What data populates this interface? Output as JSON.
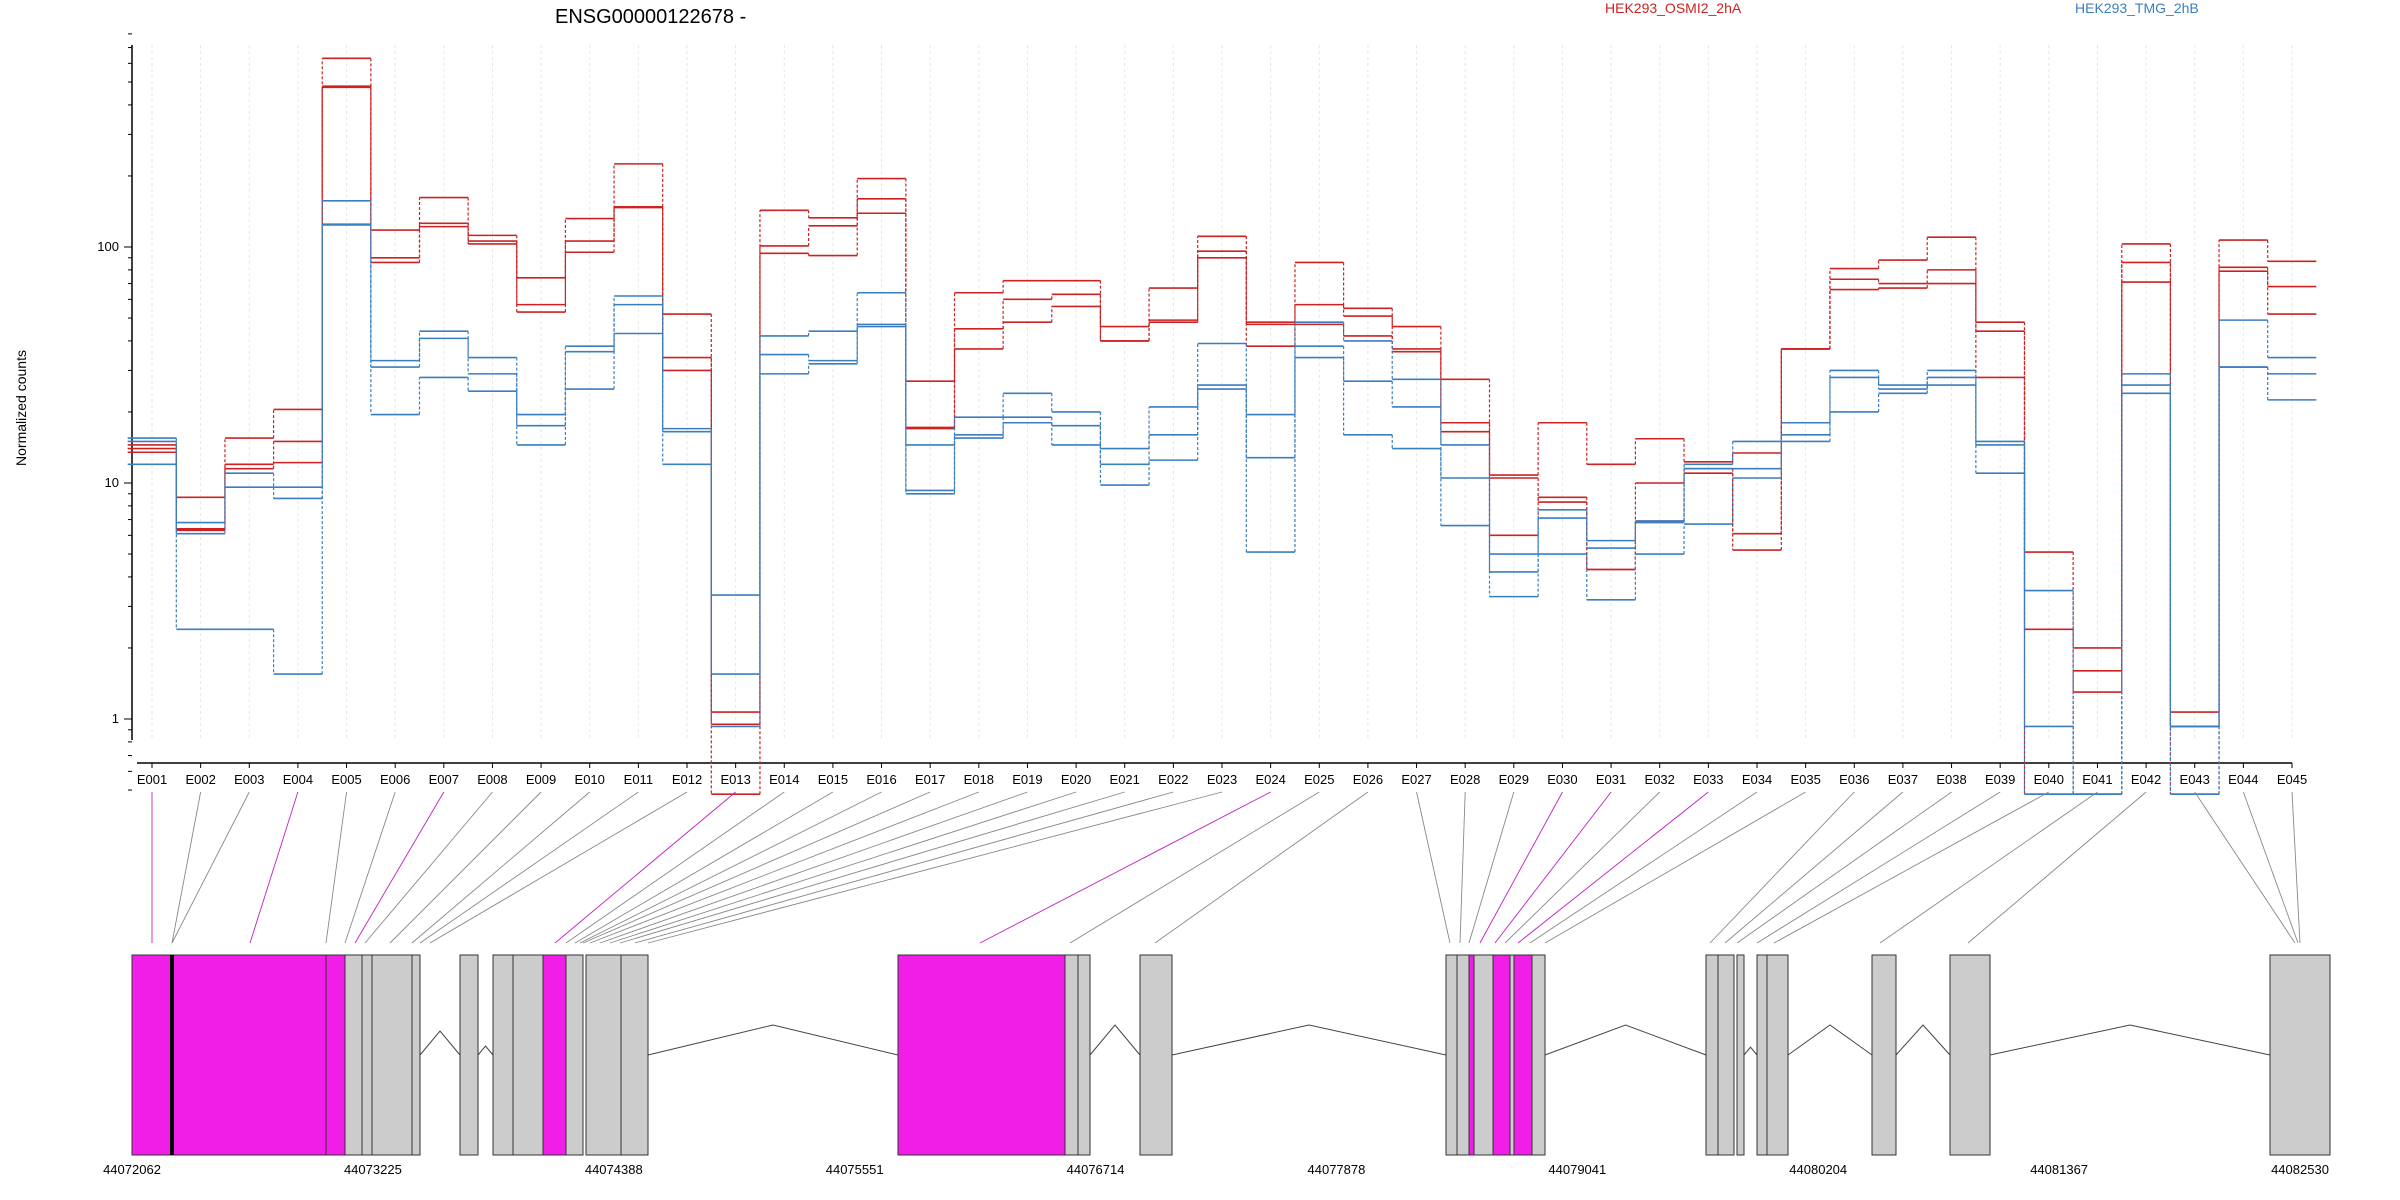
{
  "chart_data": {
    "type": "line",
    "title": "ENSG00000122678 -",
    "xlabel": "",
    "ylabel": "Normalized counts",
    "yscale": "log",
    "ylim": [
      0.45,
      800
    ],
    "yticks": [
      {
        "value": 1,
        "label": "1"
      },
      {
        "value": 10,
        "label": "10"
      },
      {
        "value": 100,
        "label": "100"
      }
    ],
    "grid": true,
    "legend_position": "top",
    "colors": {
      "condition_a": "#cc2222",
      "condition_b": "#3a7ebf",
      "exon_highlight": "#f01ee6",
      "exon_grey": "#cccccc",
      "connector_grey": "#888888",
      "connector_magenta": "#c020c0"
    },
    "exons": [
      "E001",
      "E002",
      "E003",
      "E004",
      "E005",
      "E006",
      "E007",
      "E008",
      "E009",
      "E010",
      "E011",
      "E012",
      "E013",
      "E014",
      "E015",
      "E016",
      "E017",
      "E018",
      "E019",
      "E020",
      "E021",
      "E022",
      "E023",
      "E024",
      "E025",
      "E026",
      "E027",
      "E028",
      "E029",
      "E030",
      "E031",
      "E032",
      "E033",
      "E034",
      "E035",
      "E036",
      "E037",
      "E038",
      "E039",
      "E040",
      "E041",
      "E042",
      "E043",
      "E044",
      "E045"
    ],
    "series": [
      {
        "name": "HEK293_OSMI2_2hA",
        "condition": "a",
        "values": [
          14.5,
          8.7,
          15.5,
          20.5,
          630,
          118,
          162,
          112,
          74,
          132,
          225,
          52,
          1.07,
          143,
          133,
          195,
          27,
          64,
          72,
          72,
          46,
          67,
          111,
          48,
          86,
          55,
          46,
          27.5,
          10.8,
          18,
          12,
          15.4,
          12.3,
          13.4,
          37,
          81,
          88,
          110,
          48,
          5.1,
          2,
          103,
          1.07,
          107,
          87
        ]
      },
      {
        "name": "",
        "condition": "a",
        "values": [
          13.5,
          6.3,
          11.5,
          12.2,
          480,
          90,
          126,
          106,
          57,
          106,
          147,
          34,
          0.95,
          101,
          123,
          160,
          17.2,
          45,
          60,
          63,
          40,
          48,
          96,
          47,
          57,
          51,
          37,
          18,
          6,
          8.7,
          4.3,
          6.9,
          11.5,
          5.2,
          37,
          73,
          70,
          80,
          28,
          2.4,
          1.3,
          86,
          0.93,
          79,
          68
        ]
      },
      {
        "name": "",
        "condition": "a",
        "values": [
          14,
          6.4,
          12,
          15,
          475,
          86,
          122,
          103,
          53,
          95,
          148,
          30,
          0.48,
          94,
          92,
          139,
          17,
          37,
          48,
          56,
          40,
          49,
          90,
          38,
          47,
          42,
          36,
          16.5,
          10.5,
          8.3,
          4.3,
          10,
          11,
          6.1,
          37,
          66,
          67,
          70,
          44,
          0.48,
          1.6,
          71,
          0.48,
          82,
          52
        ]
      },
      {
        "name": "HEK293_TMG_2hB",
        "condition": "b",
        "values": [
          15.5,
          6.8,
          11,
          9.6,
          157,
          33,
          44,
          34,
          19.5,
          38,
          62,
          17,
          3.35,
          42,
          44,
          64,
          9.3,
          19,
          24,
          20,
          14,
          21,
          39,
          19.5,
          48,
          40,
          27.5,
          14.5,
          5,
          7.7,
          5.7,
          6.8,
          12,
          15,
          18,
          30,
          26,
          30,
          15,
          3.5,
          0.48,
          29,
          0.93,
          49,
          34
        ]
      },
      {
        "name": "",
        "condition": "b",
        "values": [
          15,
          6.1,
          9.6,
          8.6,
          124,
          31,
          41,
          29,
          17.5,
          36,
          57,
          16.5,
          0.93,
          35,
          33,
          47,
          9,
          16,
          19,
          17.5,
          12,
          16,
          26,
          12.8,
          38,
          27,
          21,
          10.5,
          4.2,
          7.1,
          5.3,
          6.9,
          11.5,
          11.5,
          16,
          28,
          25,
          28,
          14.5,
          0.93,
          0.48,
          26,
          0.93,
          31,
          29
        ]
      },
      {
        "name": "",
        "condition": "b",
        "values": [
          12,
          2.4,
          2.4,
          1.55,
          125,
          19.5,
          28,
          24.5,
          14.5,
          25,
          43,
          12,
          1.55,
          29,
          32,
          46,
          14.5,
          15.5,
          18,
          14.5,
          9.8,
          12.5,
          25,
          5.1,
          34,
          16,
          14,
          6.6,
          3.3,
          5,
          3.2,
          5,
          6.7,
          10.5,
          15,
          20,
          24,
          26,
          11,
          0.48,
          0.48,
          24,
          0.48,
          31,
          22.5
        ]
      }
    ],
    "genomic_axis": {
      "ticks": [
        "44072062",
        "44073225",
        "44074388",
        "44075551",
        "44076714",
        "44077878",
        "44079041",
        "44080204",
        "44081367",
        "44082530"
      ]
    }
  },
  "legend": {
    "a": {
      "label": "HEK293_OSMI2_2hA"
    },
    "b": {
      "label": "HEK293_TMG_2hB"
    }
  }
}
